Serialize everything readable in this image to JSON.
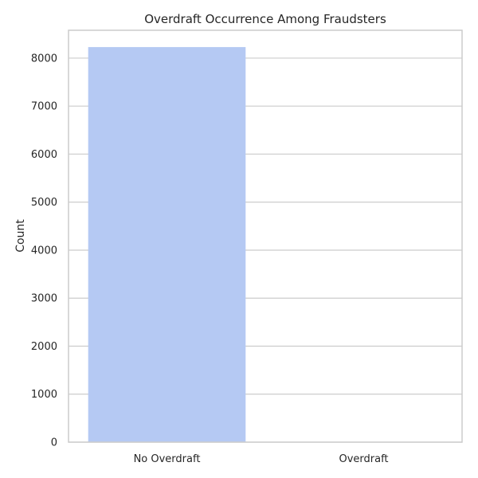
{
  "chart_data": {
    "type": "bar",
    "title": "Overdraft Occurrence Among Fraudsters",
    "xlabel": "",
    "ylabel": "Count",
    "categories": [
      "No Overdraft",
      "Overdraft"
    ],
    "values": [
      8230,
      0
    ],
    "ylim": [
      0,
      8580
    ],
    "yticks": [
      0,
      1000,
      2000,
      3000,
      4000,
      5000,
      6000,
      7000,
      8000
    ],
    "grid": true,
    "legend": "none",
    "colors": {
      "bar": "#b5c9f3",
      "grid": "#cccccc",
      "spine": "#cccccc",
      "text": "#262626"
    }
  }
}
